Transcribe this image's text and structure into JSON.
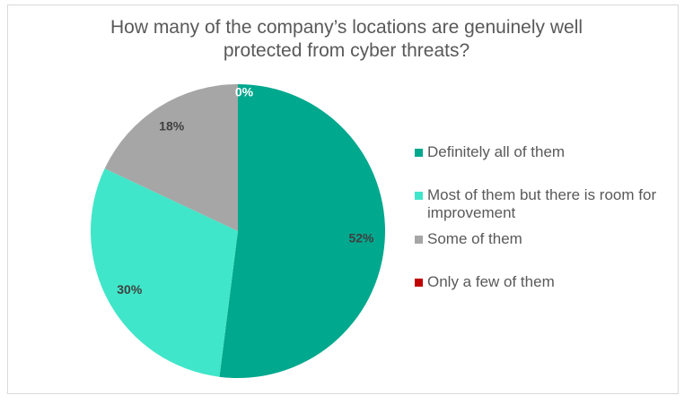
{
  "chart_data": {
    "type": "pie",
    "title": "How many of the company’s locations are genuinely well protected from cyber threats?",
    "categories": [
      "Definitely all of them",
      "Most of them but there is room for improvement",
      "Some of them",
      "Only a few of them"
    ],
    "values": [
      52,
      30,
      18,
      0
    ],
    "value_labels": [
      "52%",
      "30%",
      "18%",
      "0%"
    ],
    "colors": [
      "#00a88e",
      "#40e6c9",
      "#a6a6a6",
      "#c00000"
    ],
    "legend": "right"
  }
}
